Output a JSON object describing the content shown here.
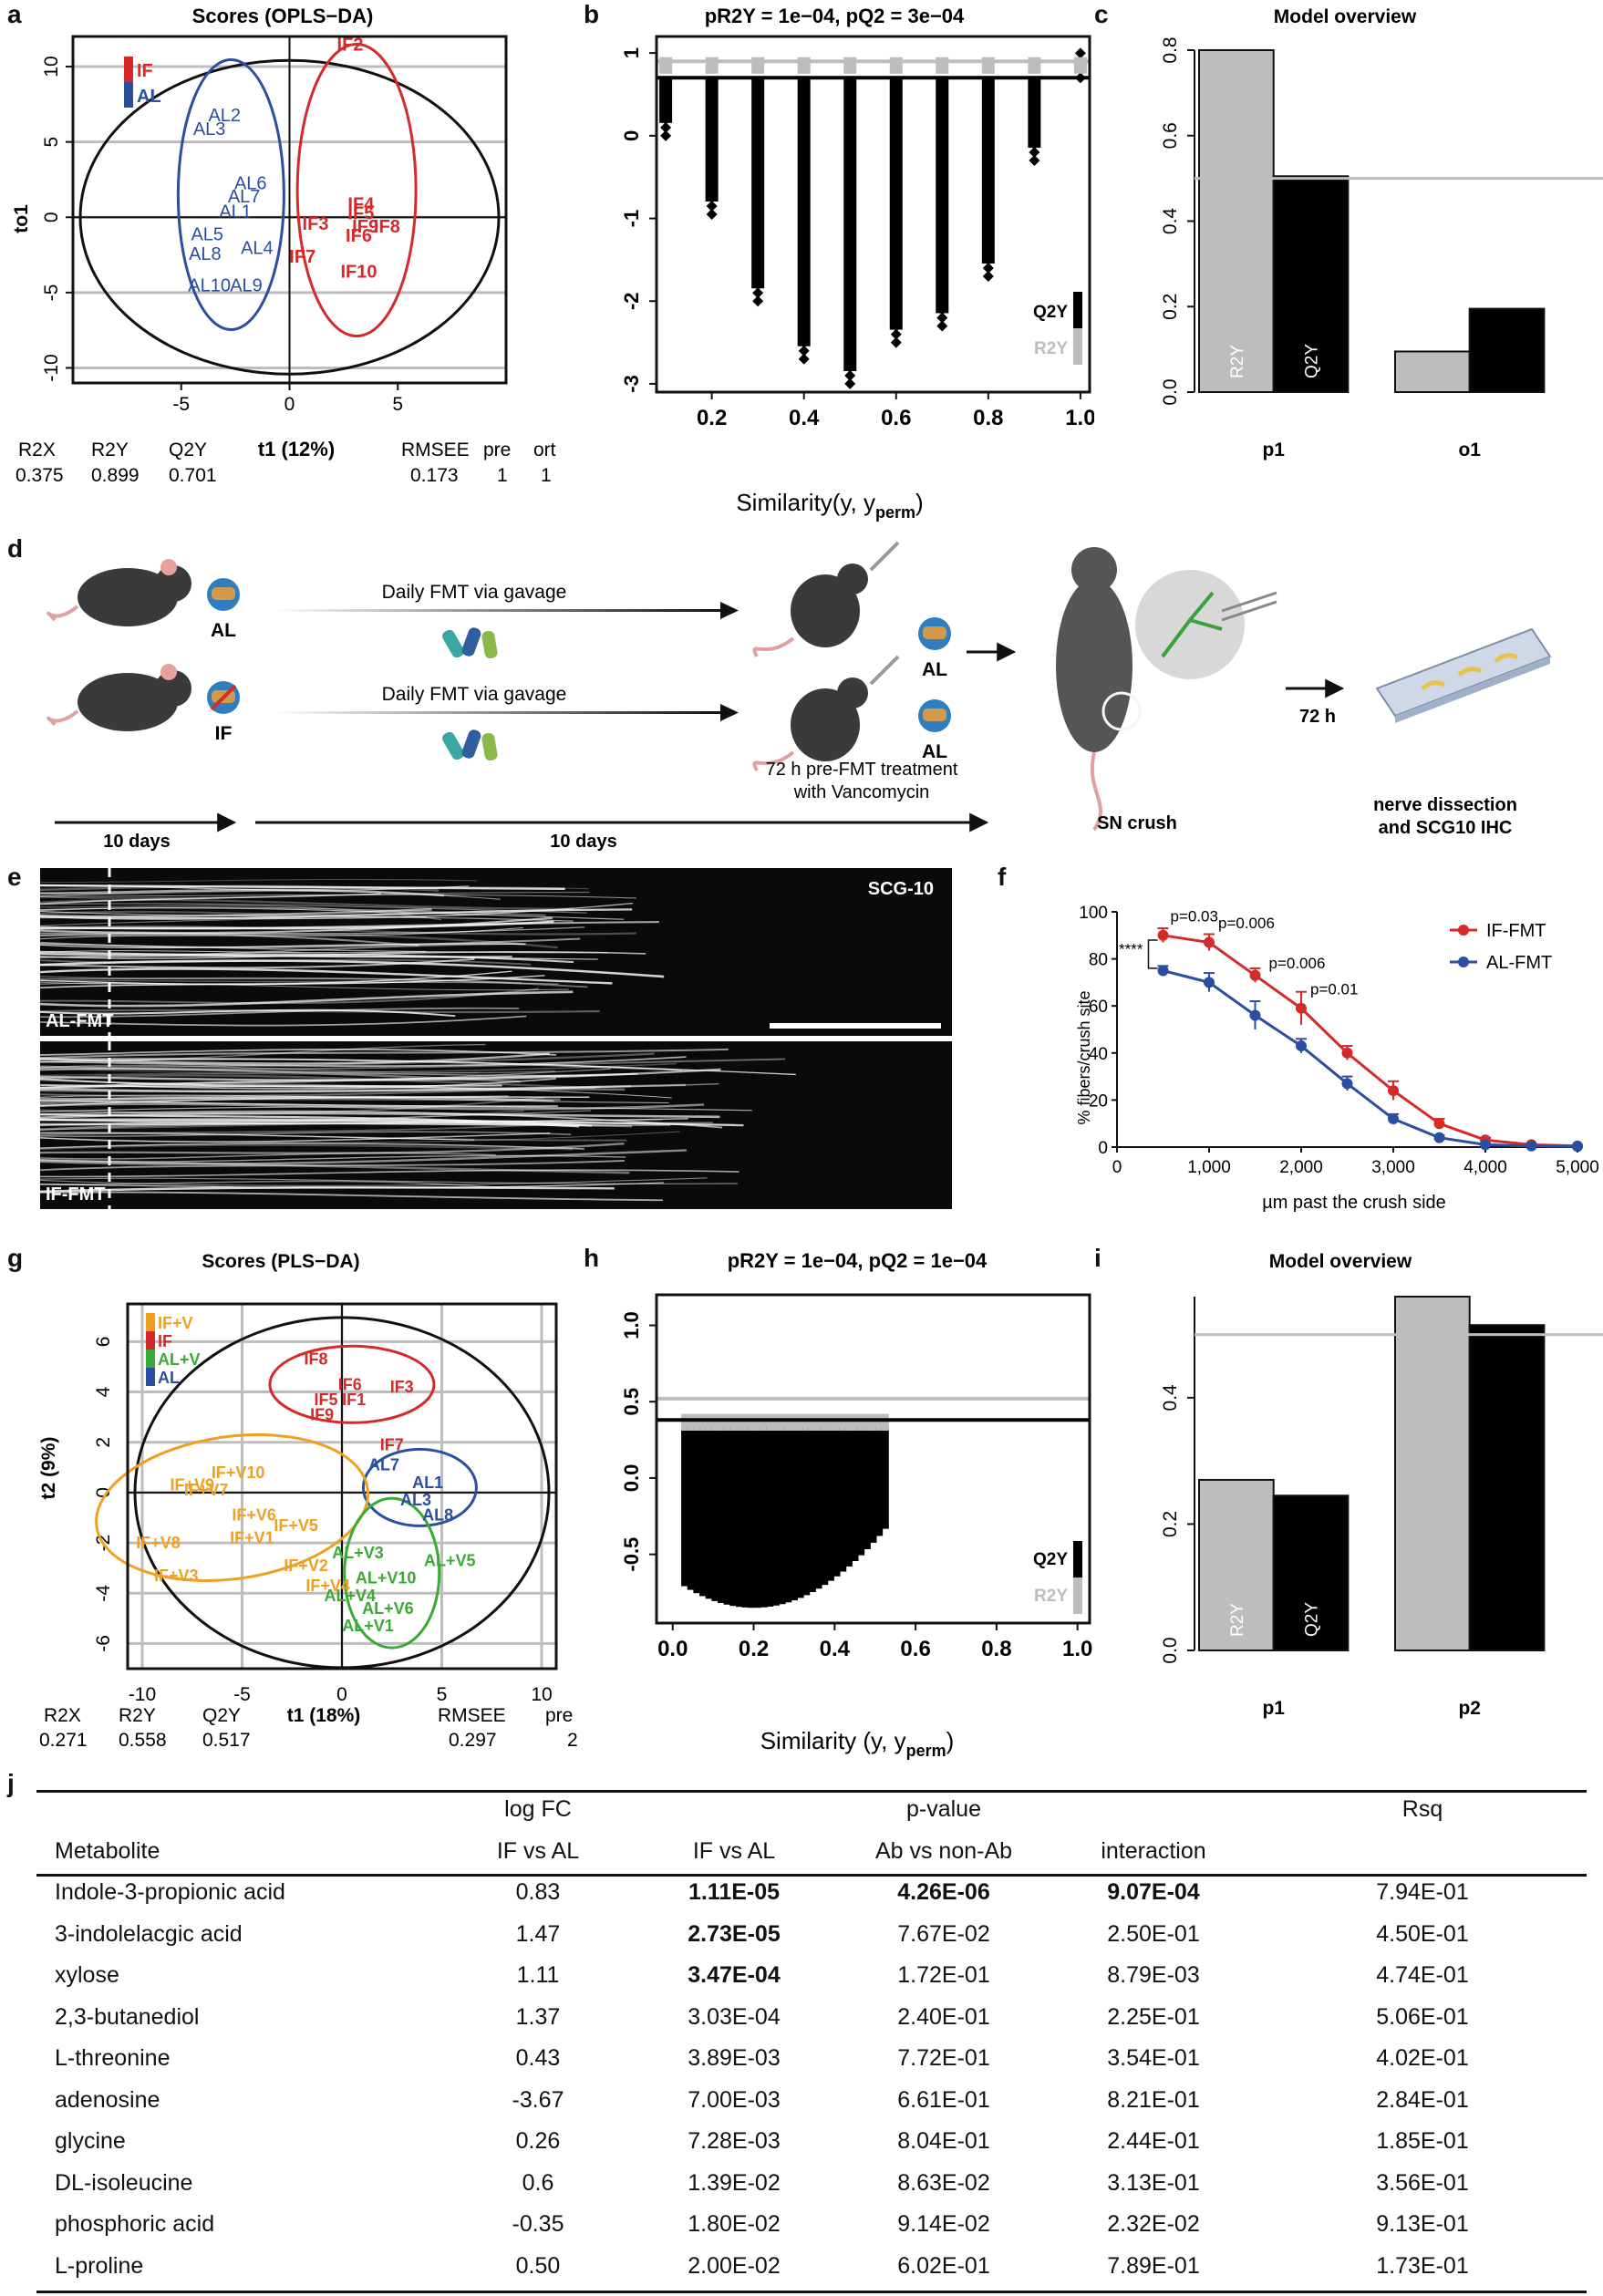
{
  "panel_labels": [
    "a",
    "b",
    "c",
    "d",
    "e",
    "f",
    "g",
    "h",
    "i",
    "j"
  ],
  "colors": {
    "IF": "#d42a2a",
    "AL": "#2b4f9e",
    "IFV": "#f0a020",
    "ALV": "#3aaa35",
    "grey": "#bdbdbd",
    "black": "#000000"
  },
  "chart_data": [
    {
      "id": "a",
      "type": "scatter",
      "title": "Scores (OPLS−DA)",
      "xlabel": "t1 (12%)",
      "ylabel": "to1",
      "xlim": [
        -10,
        10
      ],
      "ylim": [
        -11,
        12
      ],
      "xticks": [
        -5,
        0,
        5
      ],
      "yticks": [
        -10,
        -5,
        0,
        5,
        10
      ],
      "legend": [
        "IF",
        "AL"
      ],
      "points": [
        {
          "label": "IF2",
          "g": "IF",
          "x": 2.8,
          "y": 11.5
        },
        {
          "label": "IF4",
          "g": "IF",
          "x": 3.3,
          "y": 0.9
        },
        {
          "label": "IF5",
          "g": "IF",
          "x": 3.3,
          "y": 0.3
        },
        {
          "label": "IF3",
          "g": "IF",
          "x": 1.2,
          "y": -0.4
        },
        {
          "label": "IF9",
          "g": "IF",
          "x": 3.5,
          "y": -0.6
        },
        {
          "label": "IF8",
          "g": "IF",
          "x": 4.5,
          "y": -0.6
        },
        {
          "label": "IF6",
          "g": "IF",
          "x": 3.2,
          "y": -1.2
        },
        {
          "label": "IF7",
          "g": "IF",
          "x": 0.6,
          "y": -2.6
        },
        {
          "label": "IF10",
          "g": "IF",
          "x": 3.2,
          "y": -3.6
        },
        {
          "label": "AL2",
          "g": "AL",
          "x": -3.0,
          "y": 6.8
        },
        {
          "label": "AL3",
          "g": "AL",
          "x": -3.7,
          "y": 5.9
        },
        {
          "label": "AL6",
          "g": "AL",
          "x": -1.8,
          "y": 2.3
        },
        {
          "label": "AL7",
          "g": "AL",
          "x": -2.1,
          "y": 1.4
        },
        {
          "label": "AL1",
          "g": "AL",
          "x": -2.5,
          "y": 0.4
        },
        {
          "label": "AL5",
          "g": "AL",
          "x": -3.8,
          "y": -1.1
        },
        {
          "label": "AL4",
          "g": "AL",
          "x": -1.5,
          "y": -2.0
        },
        {
          "label": "AL8",
          "g": "AL",
          "x": -3.9,
          "y": -2.4
        },
        {
          "label": "AL10",
          "g": "AL",
          "x": -3.7,
          "y": -4.5
        },
        {
          "label": "AL9",
          "g": "AL",
          "x": -2.0,
          "y": -4.5
        }
      ],
      "stats_headers": [
        "R2X",
        "R2Y",
        "Q2Y",
        "RMSEE",
        "pre",
        "ort"
      ],
      "stats_values": [
        "0.375",
        "0.899",
        "0.701",
        "0.173",
        "1",
        "1"
      ]
    },
    {
      "id": "b",
      "type": "scatter",
      "title": "pR2Y = 1e−04, pQ2 = 3e−04",
      "xlabel": "Similarity(y, y",
      "xlabel_sub": "perm",
      "xlabel_end": ")",
      "xlim": [
        0.08,
        1.02
      ],
      "ylim": [
        -3.1,
        1.2
      ],
      "xticks": [
        0.2,
        0.4,
        0.6,
        0.8,
        1.0
      ],
      "yticks": [
        -3,
        -2,
        -1,
        0,
        1
      ],
      "q2y_line": 0.701,
      "r2y_line": 0.899,
      "legend": [
        "Q2Y",
        "R2Y"
      ],
      "columns": [
        {
          "x": 0.1,
          "min": 0.0
        },
        {
          "x": 0.2,
          "min": -0.95
        },
        {
          "x": 0.3,
          "min": -2.0
        },
        {
          "x": 0.4,
          "min": -2.7
        },
        {
          "x": 0.5,
          "min": -3.0
        },
        {
          "x": 0.6,
          "min": -2.5
        },
        {
          "x": 0.7,
          "min": -2.3
        },
        {
          "x": 0.8,
          "min": -1.7
        },
        {
          "x": 0.9,
          "min": -0.3
        },
        {
          "x": 1.0,
          "min": 0.7
        }
      ]
    },
    {
      "id": "c",
      "type": "bar",
      "title": "Model overview",
      "categories": [
        "p1",
        "o1"
      ],
      "series": [
        {
          "name": "R2Y",
          "values": [
            0.8,
            0.095
          ]
        },
        {
          "name": "Q2Y",
          "values": [
            0.505,
            0.195
          ]
        }
      ],
      "ylim": [
        0,
        0.8
      ],
      "yticks": [
        0.0,
        0.2,
        0.4,
        0.6,
        0.8
      ],
      "hline": 0.5
    },
    {
      "id": "f",
      "type": "line",
      "xlabel": "µm past the crush side",
      "ylabel": "% fibers/crush site",
      "x": [
        500,
        1000,
        1500,
        2000,
        2500,
        3000,
        3500,
        4000,
        4500,
        5000
      ],
      "xlim": [
        0,
        5000
      ],
      "ylim": [
        0,
        100
      ],
      "xticks": [
        "0",
        "1,000",
        "2,000",
        "3,000",
        "4,000",
        "5,000"
      ],
      "yticks": [
        0,
        20,
        40,
        60,
        80,
        100
      ],
      "series": [
        {
          "name": "IF-FMT",
          "values": [
            90,
            87,
            73,
            59,
            40,
            24,
            10,
            3,
            1,
            0.5
          ],
          "err": [
            3,
            3.5,
            3,
            7,
            3,
            4,
            2,
            1,
            0.5,
            0.3
          ]
        },
        {
          "name": "AL-FMT",
          "values": [
            75,
            70,
            56,
            43,
            27,
            12,
            4,
            1,
            0.5,
            0.3
          ],
          "err": [
            2,
            4,
            6,
            3,
            3,
            2,
            1,
            0.5,
            0.3,
            0.2
          ]
        }
      ],
      "annotations": [
        "p=0.03",
        "p=0.006",
        "p=0.006",
        "p=0.01",
        "****"
      ]
    },
    {
      "id": "g",
      "type": "scatter",
      "title": "Scores (PLS−DA)",
      "xlabel": "t1 (18%)",
      "ylabel": "t2 (9%)",
      "xlim": [
        -10,
        10
      ],
      "ylim": [
        -7,
        7.5
      ],
      "xticks": [
        -10,
        -5,
        0,
        5,
        10
      ],
      "yticks": [
        -6,
        -4,
        -2,
        0,
        2,
        4,
        6
      ],
      "legend": [
        "IF+V",
        "IF",
        "AL+V",
        "AL"
      ],
      "points": [
        {
          "label": "IF8",
          "g": "IF",
          "x": -1.3,
          "y": 5.3
        },
        {
          "label": "IF6",
          "g": "IF",
          "x": 0.4,
          "y": 4.3
        },
        {
          "label": "IF5",
          "g": "IF",
          "x": -0.8,
          "y": 3.7
        },
        {
          "label": "IF1",
          "g": "IF",
          "x": 0.6,
          "y": 3.7
        },
        {
          "label": "IF9",
          "g": "IF",
          "x": -1.0,
          "y": 3.1
        },
        {
          "label": "IF3",
          "g": "IF",
          "x": 3.0,
          "y": 4.2
        },
        {
          "label": "IF7",
          "g": "IF",
          "x": 2.5,
          "y": 1.9
        },
        {
          "label": "AL7",
          "g": "AL",
          "x": 2.1,
          "y": 1.1
        },
        {
          "label": "AL1",
          "g": "AL",
          "x": 4.3,
          "y": 0.4
        },
        {
          "label": "AL3",
          "g": "AL",
          "x": 3.7,
          "y": -0.3
        },
        {
          "label": "AL8",
          "g": "AL",
          "x": 4.8,
          "y": -0.9
        },
        {
          "label": "IF+V10",
          "g": "IFV",
          "x": -5.2,
          "y": 0.8
        },
        {
          "label": "IF+V9",
          "g": "IFV",
          "x": -7.5,
          "y": 0.3
        },
        {
          "label": "IF+V7",
          "g": "IFV",
          "x": -6.8,
          "y": 0.1
        },
        {
          "label": "IF+V6",
          "g": "IFV",
          "x": -4.4,
          "y": -0.9
        },
        {
          "label": "IF+V1",
          "g": "IFV",
          "x": -4.5,
          "y": -1.8
        },
        {
          "label": "IF+V5",
          "g": "IFV",
          "x": -2.3,
          "y": -1.3
        },
        {
          "label": "IF+V8",
          "g": "IFV",
          "x": -9.2,
          "y": -2.0
        },
        {
          "label": "IF+V3",
          "g": "IFV",
          "x": -8.3,
          "y": -3.3
        },
        {
          "label": "IF+V2",
          "g": "IFV",
          "x": -1.8,
          "y": -2.9
        },
        {
          "label": "IF+V4",
          "g": "IFV",
          "x": -0.7,
          "y": -3.7
        },
        {
          "label": "AL+V3",
          "g": "ALV",
          "x": 0.8,
          "y": -2.4
        },
        {
          "label": "AL+V5",
          "g": "ALV",
          "x": 5.4,
          "y": -2.7
        },
        {
          "label": "AL+V4",
          "g": "ALV",
          "x": 0.4,
          "y": -4.1
        },
        {
          "label": "AL+V6",
          "g": "ALV",
          "x": 2.3,
          "y": -4.6
        },
        {
          "label": "AL+V1",
          "g": "ALV",
          "x": 1.3,
          "y": -5.3
        },
        {
          "label": "AL+V10",
          "g": "ALV",
          "x": 2.2,
          "y": -3.4
        }
      ],
      "stats_headers": [
        "R2X",
        "R2Y",
        "Q2Y",
        "RMSEE",
        "pre"
      ],
      "stats_values": [
        "0.271",
        "0.558",
        "0.517",
        "0.297",
        "2"
      ]
    },
    {
      "id": "h",
      "type": "scatter",
      "title": "pR2Y = 1e−04, pQ2 = 1e−04",
      "xlabel": "Similarity (y, y",
      "xlabel_sub": "perm",
      "xlabel_end": ")",
      "xlim": [
        -0.04,
        1.03
      ],
      "ylim": [
        -0.95,
        1.2
      ],
      "xticks": [
        0.0,
        0.2,
        0.4,
        0.6,
        0.8,
        1.0
      ],
      "yticks": [
        -0.5,
        0.0,
        0.5,
        1.0
      ],
      "q2y_line": 0.38,
      "r2y_line": 0.52,
      "legend": [
        "Q2Y",
        "R2Y"
      ]
    },
    {
      "id": "i",
      "type": "bar",
      "title": "Model overview",
      "categories": [
        "p1",
        "p2"
      ],
      "series": [
        {
          "name": "R2Y",
          "values": [
            0.27,
            0.56
          ]
        },
        {
          "name": "Q2Y",
          "values": [
            0.245,
            0.515
          ]
        }
      ],
      "ylim": [
        0,
        0.56
      ],
      "yticks": [
        0.0,
        0.2,
        0.4
      ],
      "hline": 0.5
    }
  ],
  "panel_d": {
    "group1_label": "AL",
    "group2_label": "IF",
    "arrow_text": "Daily FMT via gavage",
    "recipient1_label": "AL",
    "recipient2_label": "AL",
    "pretreat_line1": "72 h pre-FMT treatment",
    "pretreat_line2": "with Vancomycin",
    "time1": "10 days",
    "time2": "10 days",
    "crush_label": "SN crush",
    "delay_label": "72 h",
    "end_line1": "nerve dissection",
    "end_line2": "and SCG10 IHC"
  },
  "panel_e": {
    "stain": "SCG-10",
    "top_label": "AL-FMT",
    "bottom_label": "IF-FMT"
  },
  "table_j": {
    "header1": [
      "",
      "log FC",
      "p-value",
      "",
      "",
      "Rsq"
    ],
    "header2": [
      "Metabolite",
      "IF vs AL",
      "IF vs AL",
      "Ab vs non-Ab",
      "interaction",
      ""
    ],
    "rows": [
      {
        "cells": [
          "Indole-3-propionic acid",
          "0.83",
          "1.11E-05",
          "4.26E-06",
          "9.07E-04",
          "7.94E-01"
        ],
        "bold": [
          2,
          3,
          4
        ]
      },
      {
        "cells": [
          "3-indolelacgic acid",
          "1.47",
          "2.73E-05",
          "7.67E-02",
          "2.50E-01",
          "4.50E-01"
        ],
        "bold": [
          2
        ]
      },
      {
        "cells": [
          "xylose",
          "1.11",
          "3.47E-04",
          "1.72E-01",
          "8.79E-03",
          "4.74E-01"
        ],
        "bold": [
          2
        ]
      },
      {
        "cells": [
          "2,3-butanediol",
          "1.37",
          "3.03E-04",
          "2.40E-01",
          "2.25E-01",
          "5.06E-01"
        ],
        "bold": []
      },
      {
        "cells": [
          "L-threonine",
          "0.43",
          "3.89E-03",
          "7.72E-01",
          "3.54E-01",
          "4.02E-01"
        ],
        "bold": []
      },
      {
        "cells": [
          "adenosine",
          "-3.67",
          "7.00E-03",
          "6.61E-01",
          "8.21E-01",
          "2.84E-01"
        ],
        "bold": []
      },
      {
        "cells": [
          "glycine",
          "0.26",
          "7.28E-03",
          "8.04E-01",
          "2.44E-01",
          "1.85E-01"
        ],
        "bold": []
      },
      {
        "cells": [
          "DL-isoleucine",
          "0.6",
          "1.39E-02",
          "8.63E-02",
          "3.13E-01",
          "3.56E-01"
        ],
        "bold": []
      },
      {
        "cells": [
          "phosphoric acid",
          "-0.35",
          "1.80E-02",
          "9.14E-02",
          "2.32E-02",
          "9.13E-01"
        ],
        "bold": []
      },
      {
        "cells": [
          "L-proline",
          "0.50",
          "2.00E-02",
          "6.02E-01",
          "7.89E-01",
          "1.73E-01"
        ],
        "bold": []
      }
    ]
  }
}
